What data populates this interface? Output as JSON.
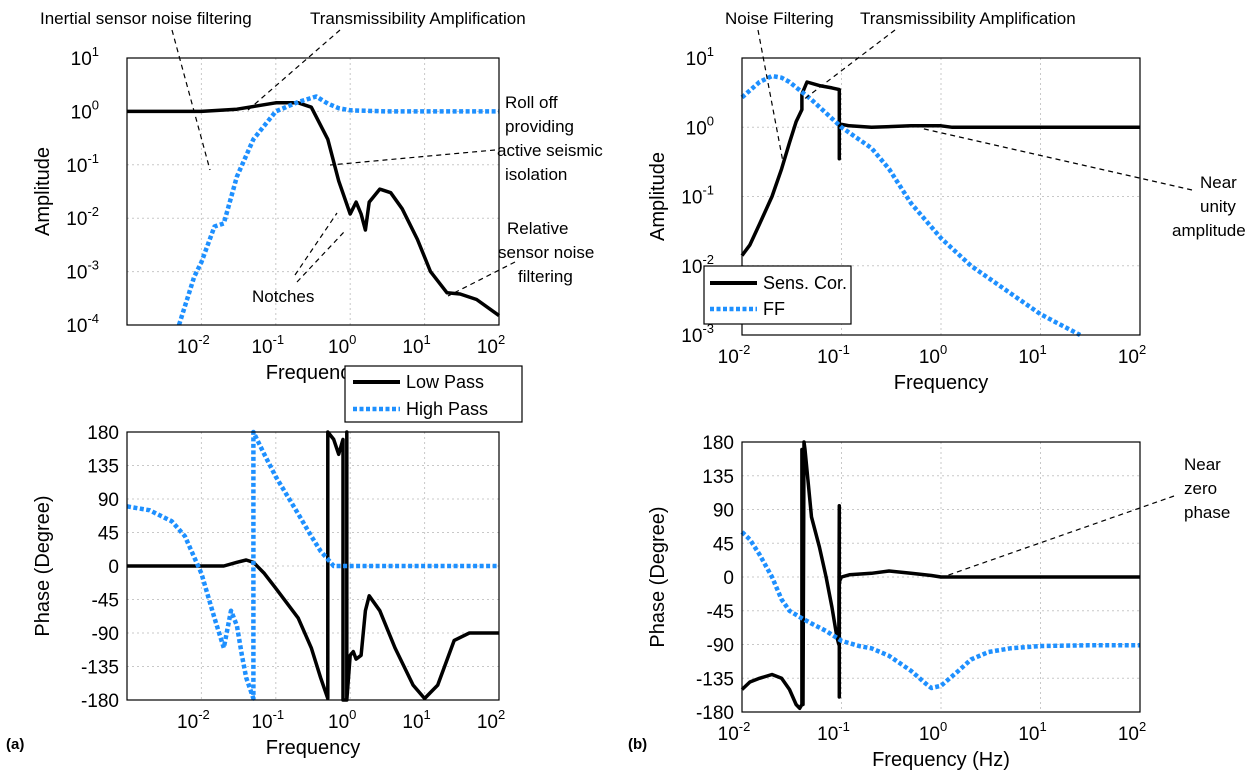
{
  "colors": {
    "low_pass": "#000000",
    "high_pass": "#1e90ff"
  },
  "panel_labels": {
    "a": "(a)",
    "b": "(b)"
  },
  "chart_data": [
    {
      "id": "a_amp",
      "type": "line",
      "xscale": "log",
      "yscale": "log",
      "xlim": [
        0.001,
        100
      ],
      "ylim": [
        0.0001,
        10
      ],
      "xlabel": "Frequency",
      "ylabel": "Amplitude",
      "xticks": [
        0.01,
        0.1,
        1,
        10,
        100
      ],
      "yticks": [
        0.0001,
        0.001,
        0.01,
        0.1,
        1,
        10
      ],
      "grid": true,
      "legend": {
        "placement": "below-plot",
        "entries": [
          "Low Pass",
          "High Pass"
        ]
      },
      "series": [
        {
          "name": "Low Pass",
          "style": "solid",
          "color": "#000000",
          "x": [
            0.001,
            0.01,
            0.03,
            0.1,
            0.2,
            0.3,
            0.5,
            0.7,
            1.0,
            1.2,
            1.4,
            1.6,
            1.8,
            2.5,
            3.5,
            5,
            8,
            12,
            20,
            30,
            50,
            100
          ],
          "y": [
            1,
            1,
            1.1,
            1.45,
            1.45,
            1.2,
            0.3,
            0.05,
            0.012,
            0.02,
            0.012,
            0.006,
            0.02,
            0.035,
            0.03,
            0.015,
            0.004,
            0.001,
            0.0004,
            0.00038,
            0.0003,
            0.00015
          ]
        },
        {
          "name": "High Pass",
          "style": "dotted",
          "color": "#1e90ff",
          "x": [
            0.005,
            0.008,
            0.01,
            0.015,
            0.02,
            0.03,
            0.05,
            0.1,
            0.2,
            0.35,
            0.5,
            0.7,
            1,
            3,
            10,
            100
          ],
          "y": [
            0.0001,
            0.0008,
            0.0015,
            0.007,
            0.008,
            0.06,
            0.3,
            1.0,
            1.5,
            1.9,
            1.4,
            1.15,
            1.05,
            1.0,
            1.0,
            1.0
          ]
        }
      ],
      "annotations": [
        {
          "text": "Inertial sensor noise filtering"
        },
        {
          "text": "Transmissibility Amplification"
        },
        {
          "text": "Roll off providing active seismic isolation",
          "lines": [
            "Roll off",
            "providing",
            "active seismic",
            "isolation"
          ]
        },
        {
          "text": "Relative sensor noise filtering",
          "lines": [
            "Relative",
            "sensor noise",
            "filtering"
          ]
        },
        {
          "text": "Notches"
        }
      ]
    },
    {
      "id": "a_phase",
      "type": "line",
      "xscale": "log",
      "yscale": "linear",
      "xlim": [
        0.001,
        100
      ],
      "ylim": [
        -180,
        180
      ],
      "xlabel": "Frequency",
      "ylabel": "Phase (Degree)",
      "xticks": [
        0.01,
        0.1,
        1,
        10,
        100
      ],
      "yticks": [
        180,
        135,
        90,
        45,
        0,
        -45,
        -90,
        -135,
        -180
      ],
      "grid": true,
      "series": [
        {
          "name": "Low Pass",
          "style": "solid",
          "color": "#000000",
          "x": [
            0.001,
            0.01,
            0.02,
            0.03,
            0.04,
            0.05,
            0.07,
            0.1,
            0.2,
            0.3,
            0.4,
            0.5,
            0.5,
            0.5,
            0.6,
            0.7,
            0.8,
            0.8,
            0.9,
            0.9,
            0.9,
            1.0,
            1.1,
            1.2,
            1.4,
            1.6,
            1.8,
            2.5,
            4,
            7,
            10,
            15,
            25,
            40,
            100
          ],
          "y": [
            0,
            0,
            0,
            5,
            8,
            5,
            -10,
            -30,
            -70,
            -110,
            -150,
            -178,
            180,
            180,
            170,
            150,
            170,
            -180,
            -180,
            180,
            -180,
            -120,
            -115,
            -125,
            -120,
            -60,
            -40,
            -60,
            -110,
            -160,
            -178,
            -160,
            -100,
            -90,
            -90
          ]
        },
        {
          "name": "High Pass",
          "style": "dotted",
          "color": "#1e90ff",
          "x": [
            0.001,
            0.002,
            0.004,
            0.006,
            0.01,
            0.015,
            0.02,
            0.025,
            0.03,
            0.035,
            0.04,
            0.05,
            0.05,
            0.07,
            0.1,
            0.2,
            0.3,
            0.4,
            0.6,
            0.8,
            1,
            10,
            100
          ],
          "y": [
            80,
            75,
            60,
            40,
            -10,
            -70,
            -110,
            -60,
            -80,
            -120,
            -150,
            -178,
            180,
            150,
            120,
            70,
            40,
            20,
            0,
            0,
            0,
            0,
            0
          ]
        }
      ]
    },
    {
      "id": "b_amp",
      "type": "line",
      "xscale": "log",
      "yscale": "log",
      "xlim": [
        0.01,
        100
      ],
      "ylim": [
        0.001,
        10
      ],
      "xlabel": "Frequency",
      "ylabel": "Amplitude",
      "xticks": [
        0.01,
        0.1,
        1,
        10,
        100
      ],
      "yticks": [
        0.001,
        0.01,
        0.1,
        1,
        10
      ],
      "grid": true,
      "legend": {
        "placement": "bottom-left",
        "entries": [
          "Sens. Cor.",
          "FF"
        ]
      },
      "series": [
        {
          "name": "Sens. Cor.",
          "style": "solid",
          "color": "#000000",
          "x": [
            0.01,
            0.012,
            0.015,
            0.02,
            0.025,
            0.03,
            0.035,
            0.04,
            0.04,
            0.045,
            0.06,
            0.08,
            0.095,
            0.095,
            0.095,
            0.1,
            0.12,
            0.2,
            0.5,
            1,
            1.3,
            10,
            100
          ],
          "y": [
            0.014,
            0.02,
            0.04,
            0.1,
            0.25,
            0.6,
            1.2,
            1.8,
            3.0,
            4.5,
            4.0,
            3.7,
            3.5,
            0.35,
            1.0,
            1.1,
            1.05,
            1.0,
            1.05,
            1.05,
            1.0,
            1.0,
            1.0
          ]
        },
        {
          "name": "FF",
          "style": "dotted",
          "color": "#1e90ff",
          "x": [
            0.01,
            0.015,
            0.02,
            0.025,
            0.03,
            0.05,
            0.1,
            0.2,
            0.3,
            0.5,
            1,
            2,
            5,
            10,
            25
          ],
          "y": [
            2.7,
            4.5,
            5.5,
            5.2,
            4.5,
            2.5,
            1.0,
            0.5,
            0.25,
            0.08,
            0.025,
            0.01,
            0.004,
            0.002,
            0.001
          ]
        }
      ],
      "annotations": [
        {
          "text": "Noise Filtering"
        },
        {
          "text": "Transmissibility Amplification"
        },
        {
          "text": "Near unity amplitude",
          "lines": [
            "Near",
            "unity",
            "amplitude"
          ]
        }
      ]
    },
    {
      "id": "b_phase",
      "type": "line",
      "xscale": "log",
      "yscale": "linear",
      "xlim": [
        0.01,
        100
      ],
      "ylim": [
        -180,
        180
      ],
      "xlabel": "Frequency (Hz)",
      "ylabel": "Phase (Degree)",
      "xticks": [
        0.01,
        0.1,
        1,
        10,
        100
      ],
      "yticks": [
        180,
        135,
        90,
        45,
        0,
        -45,
        -90,
        -135,
        -180
      ],
      "grid": true,
      "series": [
        {
          "name": "Sens. Cor.",
          "style": "solid",
          "color": "#000000",
          "x": [
            0.01,
            0.012,
            0.015,
            0.02,
            0.025,
            0.03,
            0.035,
            0.038,
            0.04,
            0.04,
            0.041,
            0.042,
            0.043,
            0.05,
            0.06,
            0.07,
            0.08,
            0.09,
            0.094,
            0.095,
            0.095,
            0.095,
            0.096,
            0.1,
            0.12,
            0.2,
            0.3,
            0.5,
            0.8,
            1,
            10,
            100
          ],
          "y": [
            -150,
            -140,
            -135,
            -130,
            -135,
            -150,
            -170,
            -175,
            -170,
            170,
            -170,
            180,
            170,
            80,
            40,
            0,
            -40,
            -80,
            -90,
            95,
            -160,
            -10,
            -5,
            0,
            3,
            5,
            8,
            5,
            2,
            0,
            0,
            0
          ]
        },
        {
          "name": "FF",
          "style": "dotted",
          "color": "#1e90ff",
          "x": [
            0.01,
            0.012,
            0.015,
            0.02,
            0.025,
            0.03,
            0.04,
            0.05,
            0.07,
            0.1,
            0.15,
            0.2,
            0.3,
            0.5,
            0.7,
            0.8,
            1,
            1.5,
            2,
            3,
            5,
            10,
            30,
            100
          ],
          "y": [
            60,
            50,
            30,
            0,
            -30,
            -45,
            -55,
            -62,
            -72,
            -85,
            -92,
            -95,
            -105,
            -125,
            -142,
            -148,
            -145,
            -125,
            -110,
            -100,
            -95,
            -92,
            -91,
            -91
          ]
        }
      ],
      "annotations": [
        {
          "text": "Near zero phase",
          "lines": [
            "Near",
            "zero",
            "phase"
          ]
        }
      ]
    }
  ]
}
